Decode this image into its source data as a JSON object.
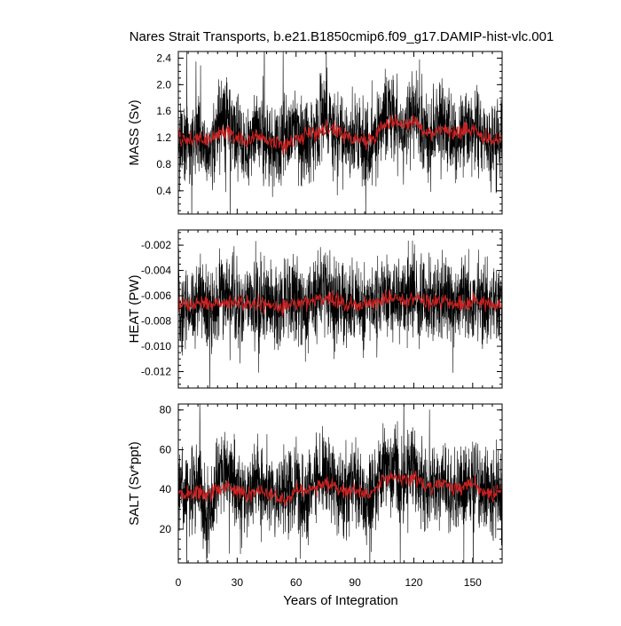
{
  "chart_data": {
    "type": "line",
    "title": "Nares Strait Transports, b.e21.B1850cmip6.f09_g17.DAMIP-hist-vlc.001",
    "xlabel": "Years of Integration",
    "xlim": [
      0,
      165
    ],
    "x_ticks": [
      0,
      30,
      60,
      90,
      120,
      150
    ],
    "x_tick_labels": [
      "0",
      "30",
      "60",
      "90",
      "120",
      "150"
    ],
    "grid": false,
    "panels": [
      {
        "ylabel": "MASS (Sv)",
        "ylim": [
          0.05,
          2.5
        ],
        "y_ticks": [
          0.4,
          0.8,
          1.2,
          1.6,
          2.0,
          2.4
        ],
        "y_tick_labels": [
          "0.4",
          "0.8",
          "1.2",
          "1.6",
          "2.0",
          "2.4"
        ],
        "y_minor_step": 0.1,
        "series": [
          {
            "color": "#000000",
            "x": [
              0,
              5,
              10,
              15,
              20,
              25,
              30,
              35,
              40,
              45,
              50,
              55,
              60,
              65,
              70,
              75,
              80,
              85,
              90,
              95,
              100,
              105,
              110,
              115,
              120,
              125,
              130,
              135,
              140,
              145,
              150,
              155,
              160,
              165
            ],
            "y": [
              1.2,
              1.1,
              1.35,
              0.8,
              1.3,
              1.55,
              1.15,
              1.05,
              1.4,
              1.2,
              1.0,
              1.25,
              1.3,
              1.05,
              1.4,
              1.6,
              1.2,
              1.1,
              1.35,
              1.0,
              1.25,
              1.5,
              1.55,
              1.3,
              1.6,
              1.25,
              1.2,
              1.45,
              1.1,
              1.35,
              1.4,
              1.2,
              1.05,
              1.25
            ]
          },
          {
            "color": "#cc2222",
            "x": [
              0,
              5,
              10,
              15,
              20,
              25,
              30,
              35,
              40,
              45,
              50,
              55,
              60,
              65,
              70,
              75,
              80,
              85,
              90,
              95,
              100,
              105,
              110,
              115,
              120,
              125,
              130,
              135,
              140,
              145,
              150,
              155,
              160,
              165
            ],
            "y": [
              1.2,
              1.15,
              1.2,
              1.15,
              1.25,
              1.3,
              1.2,
              1.15,
              1.2,
              1.18,
              1.12,
              1.05,
              1.2,
              1.25,
              1.28,
              1.35,
              1.3,
              1.22,
              1.2,
              1.15,
              1.22,
              1.4,
              1.45,
              1.4,
              1.45,
              1.3,
              1.28,
              1.32,
              1.25,
              1.3,
              1.35,
              1.22,
              1.15,
              1.2
            ]
          }
        ]
      },
      {
        "ylabel": "HEAT (PW)",
        "ylim": [
          -0.0133,
          -0.0008
        ],
        "y_ticks": [
          -0.012,
          -0.01,
          -0.008,
          -0.006,
          -0.004,
          -0.002
        ],
        "y_tick_labels": [
          "-0.012",
          "-0.010",
          "-0.008",
          "-0.006",
          "-0.004",
          "-0.002"
        ],
        "y_minor_step": 0.0005,
        "series": [
          {
            "color": "#000000",
            "x": [
              0,
              5,
              10,
              15,
              20,
              25,
              30,
              35,
              40,
              45,
              50,
              55,
              60,
              65,
              70,
              75,
              80,
              85,
              90,
              95,
              100,
              105,
              110,
              115,
              120,
              125,
              130,
              135,
              140,
              145,
              150,
              155,
              160,
              165
            ],
            "y": [
              -0.0065,
              -0.0068,
              -0.006,
              -0.0072,
              -0.0062,
              -0.0058,
              -0.0066,
              -0.0069,
              -0.0061,
              -0.0066,
              -0.007,
              -0.0064,
              -0.0062,
              -0.0068,
              -0.006,
              -0.0056,
              -0.0066,
              -0.0068,
              -0.0062,
              -0.007,
              -0.0064,
              -0.0058,
              -0.0057,
              -0.0062,
              -0.0056,
              -0.0064,
              -0.0066,
              -0.006,
              -0.0068,
              -0.0062,
              -0.0061,
              -0.0066,
              -0.0069,
              -0.0064
            ]
          },
          {
            "color": "#cc2222",
            "x": [
              0,
              5,
              10,
              15,
              20,
              25,
              30,
              35,
              40,
              45,
              50,
              55,
              60,
              65,
              70,
              75,
              80,
              85,
              90,
              95,
              100,
              105,
              110,
              115,
              120,
              125,
              130,
              135,
              140,
              145,
              150,
              155,
              160,
              165
            ],
            "y": [
              -0.0066,
              -0.0067,
              -0.0066,
              -0.0067,
              -0.0065,
              -0.0064,
              -0.0066,
              -0.0067,
              -0.0066,
              -0.0066,
              -0.0068,
              -0.0069,
              -0.0066,
              -0.0065,
              -0.0064,
              -0.0062,
              -0.0064,
              -0.0066,
              -0.0066,
              -0.0067,
              -0.0066,
              -0.0062,
              -0.0061,
              -0.0062,
              -0.0061,
              -0.0064,
              -0.0065,
              -0.0064,
              -0.0066,
              -0.0065,
              -0.0064,
              -0.0066,
              -0.0067,
              -0.0066
            ]
          }
        ]
      },
      {
        "ylabel": "SALT (Sv*ppt)",
        "ylim": [
          3,
          83
        ],
        "y_ticks": [
          20,
          40,
          60,
          80
        ],
        "y_tick_labels": [
          "20",
          "40",
          "60",
          "80"
        ],
        "y_minor_step": 5,
        "series": [
          {
            "color": "#000000",
            "x": [
              0,
              5,
              10,
              15,
              20,
              25,
              30,
              35,
              40,
              45,
              50,
              55,
              60,
              65,
              70,
              75,
              80,
              85,
              90,
              95,
              100,
              105,
              110,
              115,
              120,
              125,
              130,
              135,
              140,
              145,
              150,
              155,
              160,
              165
            ],
            "y": [
              39,
              35,
              44,
              27,
              42,
              50,
              37,
              34,
              45,
              39,
              33,
              40,
              42,
              34,
              45,
              52,
              39,
              36,
              44,
              33,
              40,
              49,
              51,
              42,
              52,
              40,
              39,
              47,
              36,
              44,
              45,
              39,
              34,
              40
            ]
          },
          {
            "color": "#cc2222",
            "x": [
              0,
              5,
              10,
              15,
              20,
              25,
              30,
              35,
              40,
              45,
              50,
              55,
              60,
              65,
              70,
              75,
              80,
              85,
              90,
              95,
              100,
              105,
              110,
              115,
              120,
              125,
              130,
              135,
              140,
              145,
              150,
              155,
              160,
              165
            ],
            "y": [
              39,
              37,
              39,
              37,
              40,
              42,
              39,
              37,
              39,
              38,
              36,
              34,
              39,
              40,
              41,
              44,
              42,
              39,
              39,
              37,
              39,
              45,
              47,
              45,
              47,
              42,
              41,
              43,
              40,
              42,
              44,
              39,
              37,
              39
            ]
          }
        ]
      }
    ]
  }
}
